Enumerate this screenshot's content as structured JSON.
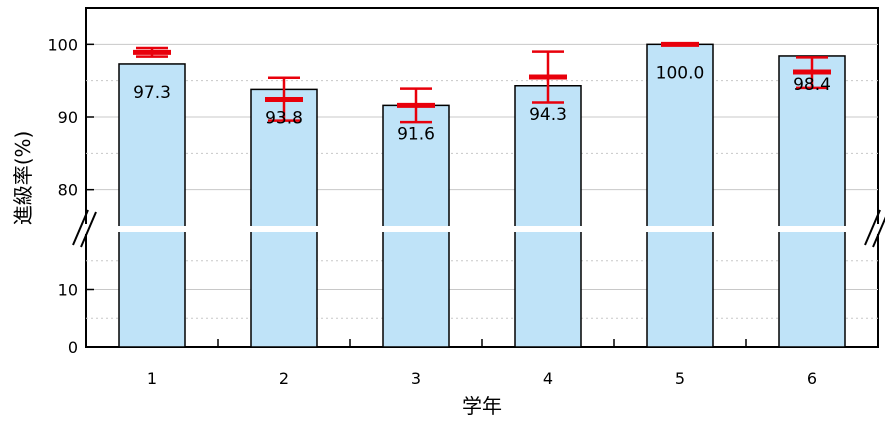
{
  "chart_data": {
    "type": "bar",
    "title": "",
    "xlabel": "学年",
    "ylabel": "進級率(%)",
    "categories": [
      "1",
      "2",
      "3",
      "4",
      "5",
      "6"
    ],
    "values": [
      97.3,
      93.8,
      91.6,
      94.3,
      100.0,
      98.4
    ],
    "data_labels": [
      "97.3",
      "93.8",
      "91.6",
      "94.3",
      "100.0",
      "98.4"
    ],
    "error_bars": [
      {
        "mean": 98.9,
        "low": 98.3,
        "high": 99.5
      },
      {
        "mean": 92.4,
        "low": 89.5,
        "high": 95.4
      },
      {
        "mean": 91.6,
        "low": 89.3,
        "high": 93.9
      },
      {
        "mean": 95.5,
        "low": 92.0,
        "high": 99.0
      },
      {
        "mean": 100.0,
        "low": 100.0,
        "high": 100.0
      },
      {
        "mean": 96.2,
        "low": 94.0,
        "high": 98.2
      }
    ],
    "y_axis_break": {
      "lower_max": 20,
      "upper_min": 75
    },
    "ylim_lower": [
      0,
      20
    ],
    "ylim_upper": [
      75,
      105
    ],
    "yticks_lower": [
      "0",
      "10"
    ],
    "yticks_upper": [
      "80",
      "90",
      "100"
    ],
    "grid": true,
    "colors": {
      "bar_fill": "#bfe3f8",
      "bar_stroke": "#000000",
      "error_bar": "#e8000b",
      "grid": "#c8c8c8",
      "break_gap": "#ffffff"
    }
  }
}
